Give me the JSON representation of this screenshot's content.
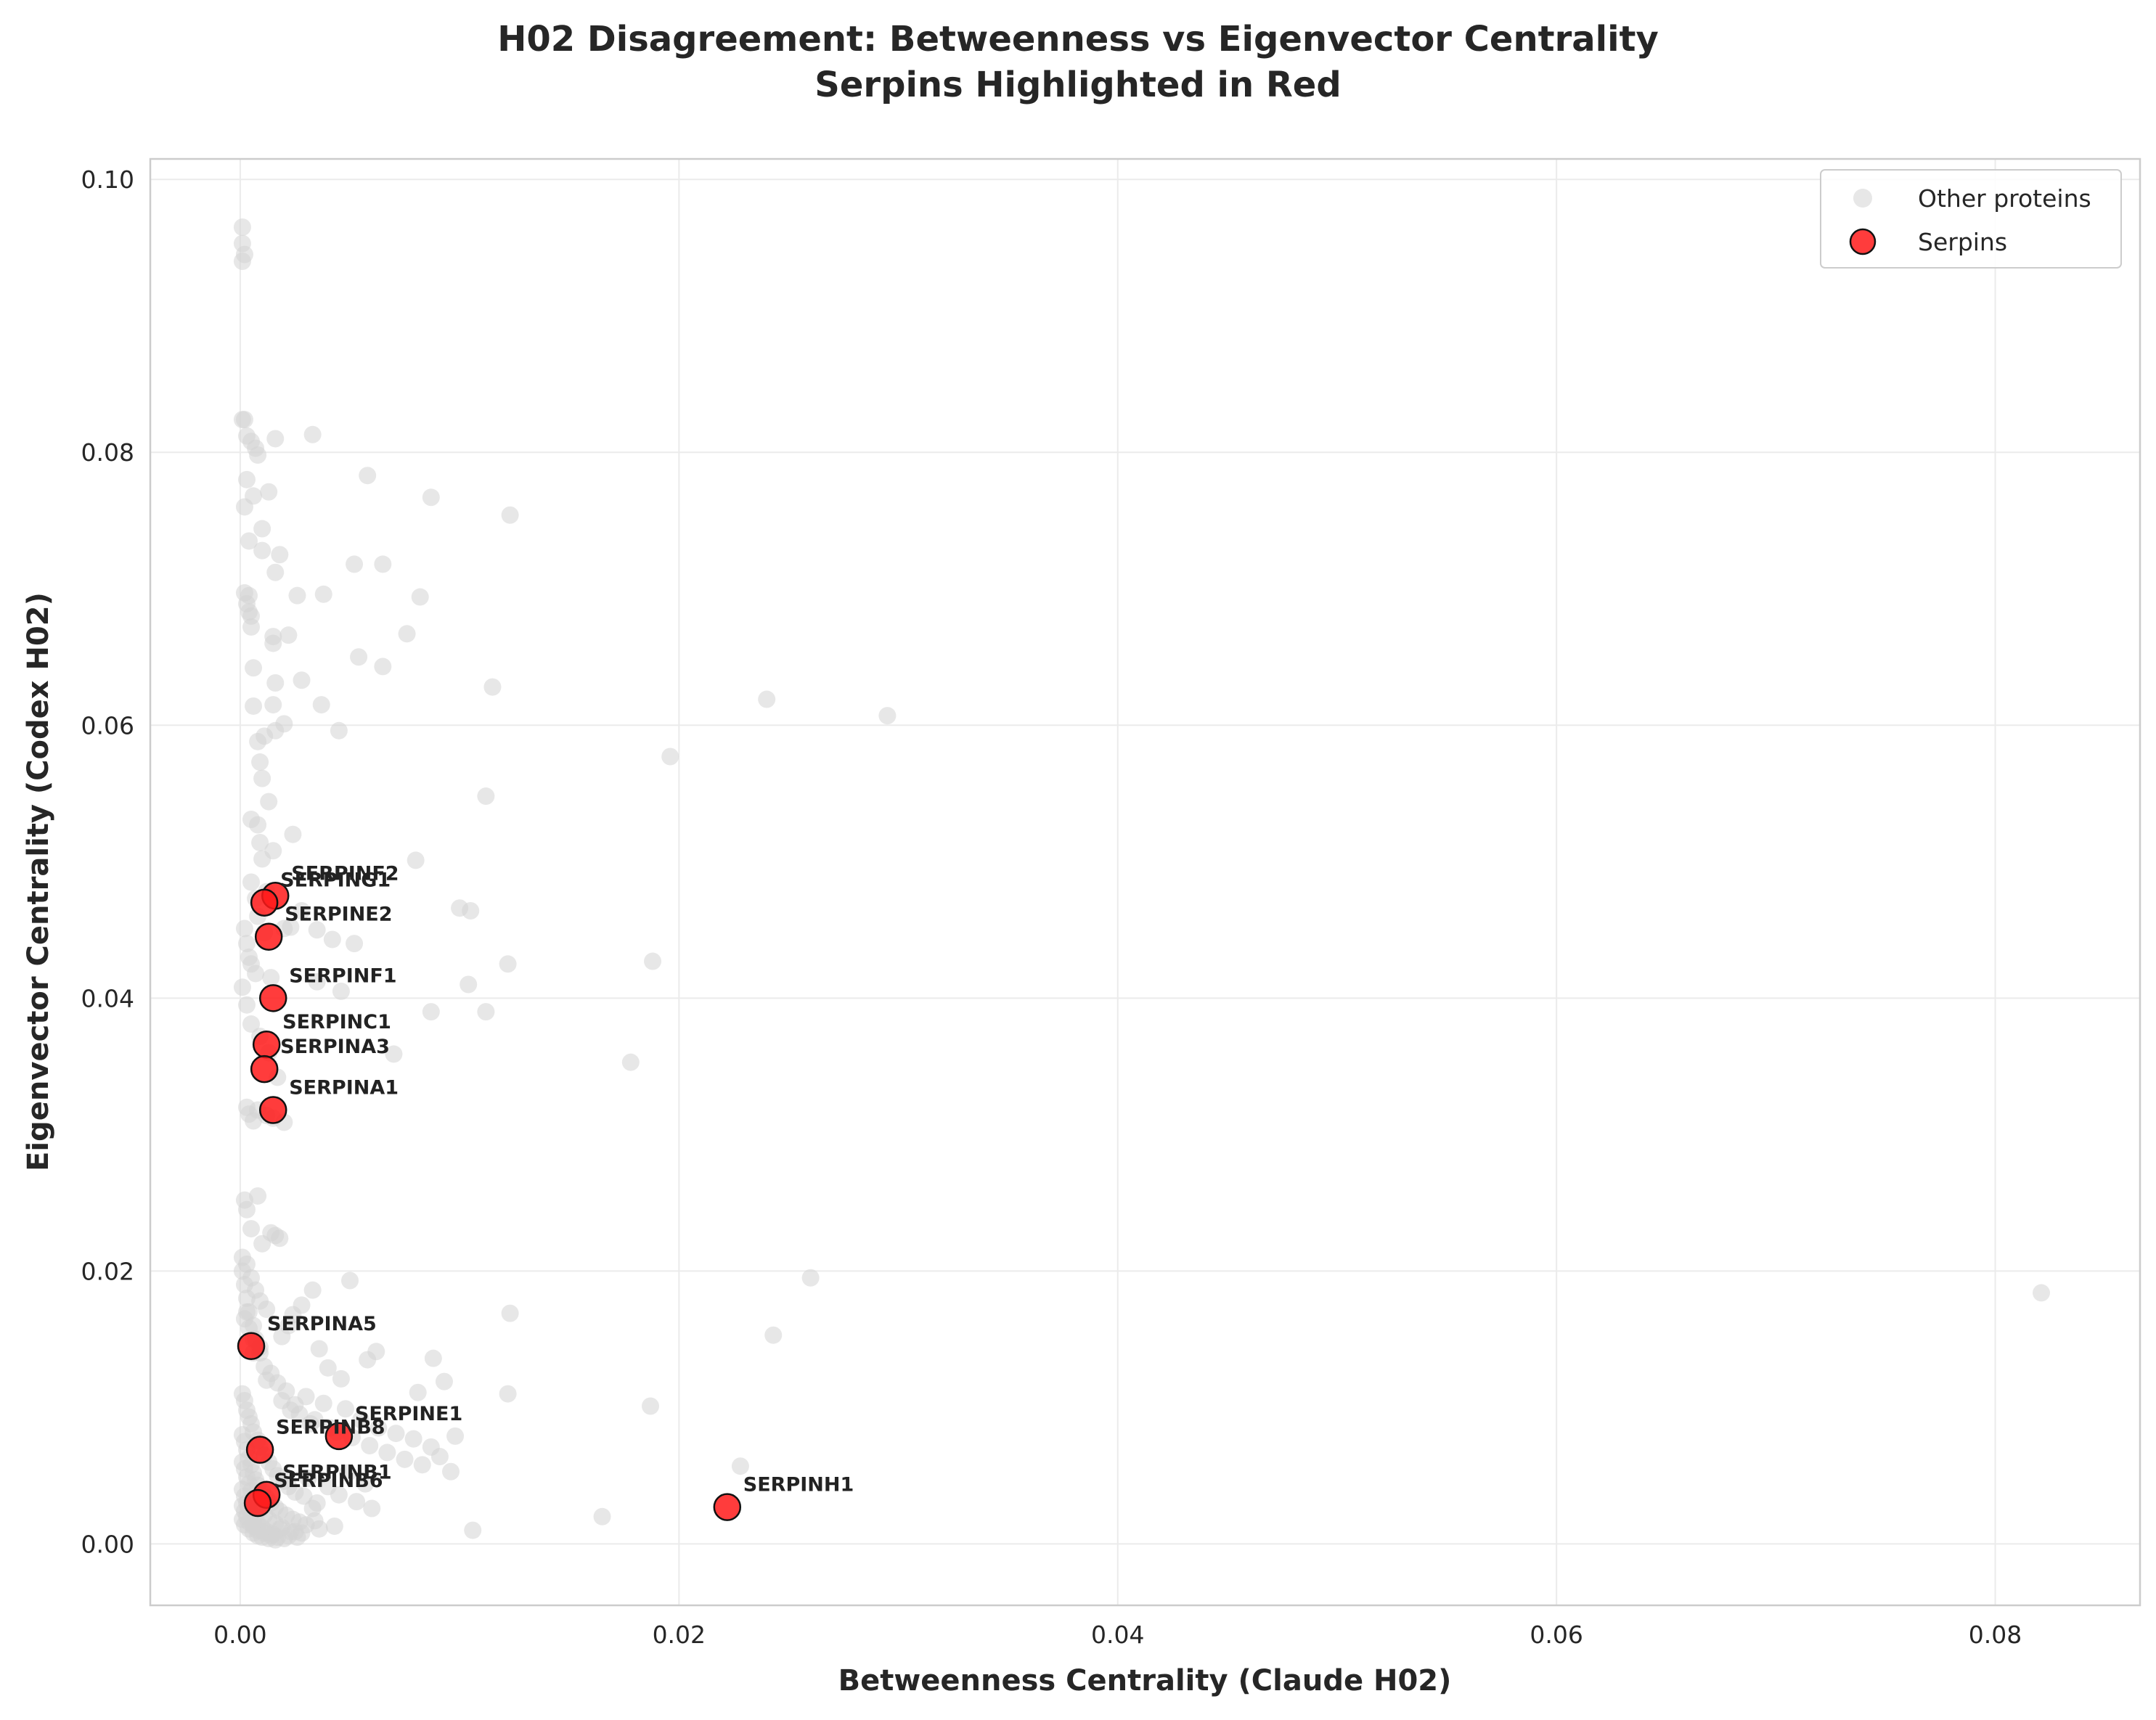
{
  "chart_data": {
    "type": "scatter",
    "title": "H02 Disagreement: Betweenness vs Eigenvector Centrality",
    "subtitle": "Serpins Highlighted in Red",
    "xlabel": "Betweenness Centrality (Claude H02)",
    "ylabel": "Eigenvector Centrality (Codex H02)",
    "xlim": [
      -0.0041,
      0.0866
    ],
    "ylim": [
      -0.0045,
      0.1015
    ],
    "xticks": [
      0.0,
      0.02,
      0.04,
      0.06,
      0.08
    ],
    "xtick_labels": [
      "0.00",
      "0.02",
      "0.04",
      "0.06",
      "0.08"
    ],
    "yticks": [
      0.0,
      0.02,
      0.04,
      0.06,
      0.08,
      0.1
    ],
    "ytick_labels": [
      "0.00",
      "0.02",
      "0.04",
      "0.06",
      "0.08",
      "0.10"
    ],
    "grid": true,
    "legend_position": "top-right",
    "series": [
      {
        "name": "Other proteins",
        "color": "#d3d3d3",
        "x": [
          0.0001,
          0.0001,
          0.0002,
          0.0001,
          0.0001,
          0.0002,
          0.0003,
          0.0005,
          0.0007,
          0.0008,
          0.0016,
          0.0033,
          0.0058,
          0.0087,
          0.0123,
          0.0003,
          0.0006,
          0.001,
          0.0013,
          0.0002,
          0.0004,
          0.001,
          0.0016,
          0.0018,
          0.0002,
          0.0003,
          0.0004,
          0.0004,
          0.0005,
          0.0005,
          0.0006,
          0.0015,
          0.0022,
          0.0026,
          0.0038,
          0.0052,
          0.0065,
          0.0076,
          0.0082,
          0.0015,
          0.0016,
          0.0006,
          0.0015,
          0.0028,
          0.0054,
          0.0065,
          0.0115,
          0.0037,
          0.0011,
          0.0016,
          0.002,
          0.0045,
          0.0008,
          0.0009,
          0.001,
          0.0008,
          0.0009,
          0.0013,
          0.0015,
          0.0024,
          0.024,
          0.0295,
          0.0196,
          0.0112,
          0.0005,
          0.001,
          0.0005,
          0.0007,
          0.0008,
          0.0012,
          0.0023,
          0.0003,
          0.0014,
          0.008,
          0.01,
          0.0105,
          0.0002,
          0.0004,
          0.0005,
          0.0007,
          0.0011,
          0.002,
          0.0028,
          0.0035,
          0.0042,
          0.0052,
          0.0188,
          0.0122,
          0.0104,
          0.0001,
          0.0003,
          0.0005,
          0.0009,
          0.0013,
          0.0017,
          0.0035,
          0.0046,
          0.0087,
          0.0112,
          0.007,
          0.0178,
          0.0003,
          0.0004,
          0.0006,
          0.0008,
          0.0012,
          0.0015,
          0.002,
          0.0002,
          0.0003,
          0.0005,
          0.0008,
          0.001,
          0.0014,
          0.0016,
          0.0018,
          0.0821,
          0.026,
          0.0243,
          0.0123,
          0.005,
          0.0033,
          0.0028,
          0.0024,
          0.0022,
          0.0019,
          0.0036,
          0.004,
          0.0046,
          0.0058,
          0.0062,
          0.0081,
          0.0088,
          0.0093,
          0.0098,
          0.0122,
          0.0187,
          0.0228,
          0.0165,
          0.0106,
          0.0001,
          0.0002,
          0.0003,
          0.0004,
          0.0006,
          0.0007,
          0.0009,
          0.0011,
          0.0012,
          0.0014,
          0.0017,
          0.0019,
          0.0021,
          0.0023,
          0.0025,
          0.0027,
          0.003,
          0.0032,
          0.0034,
          0.0038,
          0.0041,
          0.0044,
          0.0048,
          0.0051,
          0.0055,
          0.0059,
          0.0063,
          0.0067,
          0.0071,
          0.0075,
          0.0079,
          0.0083,
          0.0087,
          0.0091,
          0.0096,
          0.0001,
          0.0002,
          0.0003,
          0.0004,
          0.0005,
          0.0006,
          0.0008,
          0.0009,
          0.0011,
          0.0013,
          0.0015,
          0.0017,
          0.002,
          0.0022,
          0.0025,
          0.0029,
          0.0031,
          0.0035,
          0.004,
          0.0045,
          0.0049,
          0.0053,
          0.0057,
          0.006,
          0.0001,
          0.0002,
          0.0003,
          0.0004,
          0.0005,
          0.0006,
          0.0007,
          0.0008,
          0.001,
          0.0012,
          0.0014,
          0.0016,
          0.0018,
          0.0021,
          0.0024,
          0.0027,
          0.003,
          0.0033,
          0.0036,
          0.0043,
          0.0001,
          0.0002,
          0.0003,
          0.0004,
          0.0005,
          0.0006,
          0.0007,
          0.0009,
          0.0011,
          0.0013,
          0.0016,
          0.0019,
          0.0023,
          0.0028,
          0.0034,
          0.0001,
          0.0002,
          0.0003,
          0.0004,
          0.0005,
          0.0006,
          0.0008,
          0.001,
          0.0012,
          0.0015,
          0.0018,
          0.0022,
          0.0026,
          0.0001,
          0.0002,
          0.0003,
          0.0004,
          0.0006,
          0.0008,
          0.0011,
          0.0014,
          0.0017,
          0.002,
          0.0025,
          0.0001,
          0.0002,
          0.0004,
          0.0006,
          0.0008,
          0.001,
          0.0013,
          0.0016,
          0.0001,
          0.0003,
          0.0005,
          0.0007,
          0.0009,
          0.0012,
          0.0002,
          0.0004,
          0.0006,
          0.0009,
          0.0003,
          0.0006
        ],
        "y": [
          0.0965,
          0.0953,
          0.0945,
          0.094,
          0.0824,
          0.0824,
          0.0812,
          0.0808,
          0.0803,
          0.0798,
          0.081,
          0.0813,
          0.0783,
          0.0767,
          0.0754,
          0.078,
          0.0768,
          0.0744,
          0.0771,
          0.076,
          0.0735,
          0.0728,
          0.0712,
          0.0725,
          0.0697,
          0.0689,
          0.0695,
          0.0683,
          0.0672,
          0.068,
          0.0642,
          0.066,
          0.0666,
          0.0695,
          0.0696,
          0.0718,
          0.0718,
          0.0667,
          0.0694,
          0.0665,
          0.0631,
          0.0614,
          0.0615,
          0.0633,
          0.065,
          0.0643,
          0.0628,
          0.0615,
          0.0592,
          0.0596,
          0.0601,
          0.0596,
          0.0588,
          0.0573,
          0.0561,
          0.0527,
          0.0514,
          0.0544,
          0.0508,
          0.052,
          0.0619,
          0.0607,
          0.0577,
          0.0548,
          0.0531,
          0.0502,
          0.0485,
          0.0473,
          0.046,
          0.0478,
          0.0452,
          0.044,
          0.0415,
          0.0501,
          0.0466,
          0.0464,
          0.0451,
          0.043,
          0.0425,
          0.0418,
          0.0448,
          0.0451,
          0.0464,
          0.045,
          0.0443,
          0.044,
          0.0427,
          0.0425,
          0.041,
          0.0408,
          0.0395,
          0.0381,
          0.0372,
          0.036,
          0.0342,
          0.0412,
          0.0405,
          0.039,
          0.039,
          0.0359,
          0.0353,
          0.032,
          0.0315,
          0.031,
          0.0318,
          0.0314,
          0.0312,
          0.0309,
          0.0252,
          0.0245,
          0.0231,
          0.0255,
          0.022,
          0.0228,
          0.0226,
          0.0224,
          0.0184,
          0.0195,
          0.0153,
          0.0169,
          0.0193,
          0.0186,
          0.0175,
          0.0168,
          0.016,
          0.0152,
          0.0143,
          0.0129,
          0.0121,
          0.0135,
          0.0141,
          0.0111,
          0.0136,
          0.0119,
          0.0079,
          0.011,
          0.0101,
          0.0057,
          0.002,
          0.001,
          0.02,
          0.019,
          0.018,
          0.017,
          0.016,
          0.015,
          0.014,
          0.013,
          0.012,
          0.0125,
          0.0118,
          0.0105,
          0.0112,
          0.0098,
          0.0102,
          0.0095,
          0.0108,
          0.0088,
          0.0091,
          0.0103,
          0.0085,
          0.0082,
          0.0099,
          0.0078,
          0.0091,
          0.0072,
          0.0085,
          0.0067,
          0.0081,
          0.0062,
          0.0077,
          0.0058,
          0.0071,
          0.0064,
          0.0053,
          0.011,
          0.0105,
          0.0098,
          0.0093,
          0.0088,
          0.0082,
          0.0076,
          0.0071,
          0.0065,
          0.006,
          0.0055,
          0.005,
          0.0046,
          0.0042,
          0.0038,
          0.0035,
          0.0048,
          0.003,
          0.0042,
          0.0036,
          0.0052,
          0.0031,
          0.0044,
          0.0026,
          0.008,
          0.0075,
          0.0069,
          0.0063,
          0.0058,
          0.0052,
          0.0047,
          0.0043,
          0.0039,
          0.0034,
          0.003,
          0.0027,
          0.0024,
          0.0021,
          0.0018,
          0.0016,
          0.0014,
          0.0026,
          0.0011,
          0.0013,
          0.006,
          0.0055,
          0.0049,
          0.0044,
          0.0039,
          0.0034,
          0.0029,
          0.0025,
          0.0021,
          0.0018,
          0.0015,
          0.0012,
          0.0009,
          0.0008,
          0.0017,
          0.004,
          0.0035,
          0.003,
          0.0026,
          0.0022,
          0.0018,
          0.0015,
          0.0012,
          0.0009,
          0.0007,
          0.0011,
          0.0006,
          0.0005,
          0.0028,
          0.0024,
          0.002,
          0.0016,
          0.0013,
          0.001,
          0.0008,
          0.0006,
          0.0005,
          0.0004,
          0.0009,
          0.0018,
          0.0014,
          0.0011,
          0.0008,
          0.0006,
          0.0005,
          0.0004,
          0.0003,
          0.021,
          0.0205,
          0.0195,
          0.0186,
          0.0178,
          0.0172,
          0.0165,
          0.0158,
          0.015,
          0.0144,
          0.017,
          0.014
        ]
      },
      {
        "name": "Serpins",
        "color": "#ff1a1a",
        "x": [
          0.0016,
          0.0011,
          0.0013,
          0.0015,
          0.0012,
          0.0011,
          0.0015,
          0.0005,
          0.0009,
          0.0045,
          0.0012,
          0.0008,
          0.0222
        ],
        "y": [
          0.0475,
          0.047,
          0.0445,
          0.04,
          0.0366,
          0.0348,
          0.0318,
          0.0145,
          0.0069,
          0.0079,
          0.0036,
          0.003,
          0.0027
        ],
        "labels": [
          "SERPINF2",
          "SERPING1",
          "SERPINE2",
          "SERPINF1",
          "SERPINC1",
          "SERPINA3",
          "SERPINA1",
          "SERPINA5",
          "SERPINB8",
          "SERPINE1",
          "SERPINB1",
          "SERPINB6",
          "SERPINH1"
        ]
      }
    ]
  }
}
